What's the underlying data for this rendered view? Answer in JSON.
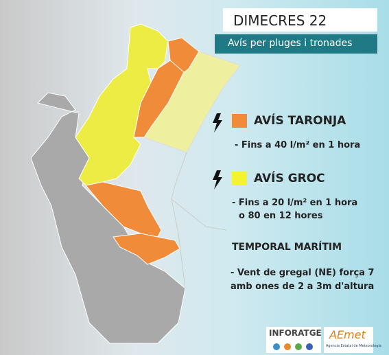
{
  "header": {
    "day": "DIMECRES 22",
    "subtitle": "Avís per pluges i tronades"
  },
  "legend": [
    {
      "title": "AVÍS TARONJA",
      "lines": [
        "- Fins a 40 l/m² en 1 hora"
      ]
    },
    {
      "title": "AVÍS GROC",
      "lines": [
        "- Fins a 20 l/m² en 1 hora",
        "o 80 en 12 hores"
      ]
    }
  ],
  "marine": {
    "title": "TEMPORAL MARÍTIM",
    "lines": [
      "- Vent de gregal (NE) força 7",
      "amb ones de 2 a 3m d'altura"
    ]
  },
  "logos": {
    "inforatge": "INFORATGE",
    "aemet": "AEmet",
    "aemet_caption": "Agencia Estatal de Meteorología"
  }
}
